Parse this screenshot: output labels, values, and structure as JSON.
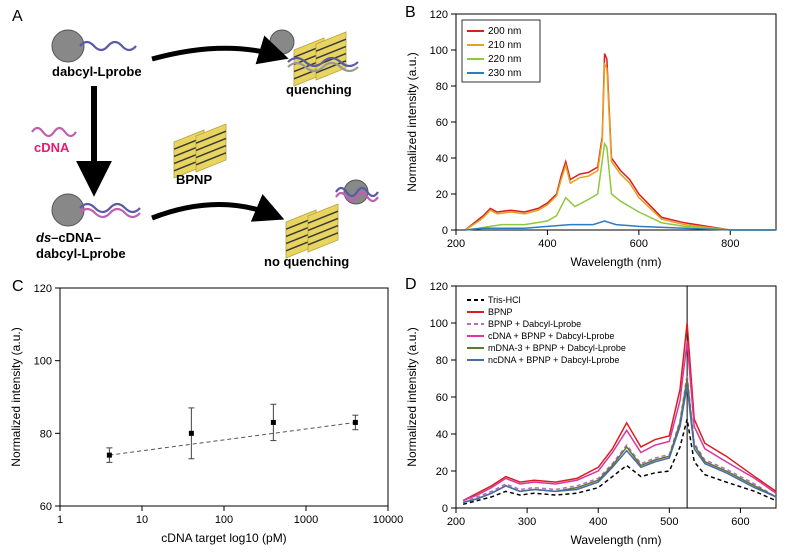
{
  "panel_labels": {
    "A": "A",
    "B": "B",
    "C": "C",
    "D": "D"
  },
  "diagram": {
    "top_left": {
      "label": "dabcyl-Lprobe",
      "color": "#000000"
    },
    "top_right": {
      "label": "quenching",
      "color": "#000000"
    },
    "bottom_left": {
      "label_italic_prefix": "ds",
      "label_rest": "–cDNA–\ndabcyl-Lprobe",
      "color": "#000000"
    },
    "bottom_right": {
      "label": "no quenching",
      "color": "#000000"
    },
    "cdna": {
      "label": "cDNA",
      "color": "#e61a6e"
    },
    "bpnp": {
      "label": "BPNP",
      "color": "#000000"
    },
    "sphere_color": "#888888",
    "dna_colors": {
      "probe": "#5a5aa8",
      "cdna": "#c060b0",
      "bpnp_fill": "#e8d560",
      "bpnp_stroke": "#3a3a3a"
    },
    "font_size": 13,
    "font_weight": "bold"
  },
  "chartB": {
    "type": "line",
    "title": "",
    "xlabel": "Wavelength (nm)",
    "ylabel": "Normalized intensity (a.u.)",
    "xlim": [
      200,
      900
    ],
    "ylim": [
      0,
      120
    ],
    "xticks": [
      200,
      400,
      600,
      800
    ],
    "yticks": [
      0,
      20,
      40,
      60,
      80,
      100,
      120
    ],
    "label_fontsize": 12,
    "tick_fontsize": 11,
    "legend_fontsize": 10,
    "line_width": 1.5,
    "background_color": "#ffffff",
    "axis_color": "#000000",
    "legend_box": true,
    "series": [
      {
        "name": "200 nm",
        "color": "#d81e1e",
        "x": [
          220,
          250,
          260,
          275,
          290,
          320,
          350,
          380,
          400,
          420,
          430,
          440,
          450,
          470,
          490,
          510,
          520,
          525,
          530,
          540,
          560,
          580,
          600,
          650,
          700,
          800,
          900
        ],
        "y": [
          0,
          6,
          8,
          12,
          10,
          11,
          10,
          12,
          15,
          20,
          30,
          38,
          28,
          31,
          32,
          35,
          52,
          98,
          95,
          40,
          33,
          28,
          20,
          7,
          4,
          0,
          0
        ]
      },
      {
        "name": "210 nm",
        "color": "#e8a020",
        "x": [
          220,
          250,
          260,
          275,
          290,
          320,
          350,
          380,
          400,
          420,
          430,
          440,
          450,
          470,
          490,
          510,
          520,
          525,
          530,
          540,
          560,
          580,
          600,
          650,
          700,
          800,
          900
        ],
        "y": [
          0,
          5,
          7,
          11,
          9,
          10,
          9,
          11,
          14,
          19,
          28,
          36,
          26,
          29,
          30,
          33,
          50,
          92,
          90,
          38,
          31,
          26,
          18,
          6,
          3,
          0,
          0
        ]
      },
      {
        "name": "220 nm",
        "color": "#8fc83c",
        "x": [
          220,
          250,
          275,
          300,
          350,
          400,
          420,
          440,
          460,
          490,
          510,
          525,
          530,
          540,
          560,
          600,
          650,
          700,
          800,
          900
        ],
        "y": [
          0,
          1,
          2,
          3,
          3,
          5,
          8,
          18,
          13,
          17,
          20,
          48,
          46,
          20,
          16,
          10,
          4,
          2,
          0,
          0
        ]
      },
      {
        "name": "230 nm",
        "color": "#2e7cc0",
        "x": [
          220,
          260,
          300,
          350,
          400,
          450,
          500,
          525,
          550,
          600,
          700,
          800,
          900
        ],
        "y": [
          0,
          1,
          1,
          1,
          2,
          3,
          3,
          5,
          3,
          2,
          1,
          0,
          0
        ]
      }
    ]
  },
  "chartC": {
    "type": "scatter",
    "xlabel": "cDNA target log10 (pM)",
    "ylabel": "Normalized intensity (a.u.)",
    "xlim": [
      1,
      10000
    ],
    "ylim": [
      60,
      120
    ],
    "xticks": [
      1,
      10,
      100,
      1000,
      10000
    ],
    "yticks": [
      60,
      80,
      100,
      120
    ],
    "xscale": "log",
    "label_fontsize": 12,
    "tick_fontsize": 11,
    "marker_color": "#000000",
    "marker_size": 5,
    "marker_shape": "square",
    "errorbar_color": "#444444",
    "errorbar_width": 1,
    "trendline_color": "#555555",
    "trendline_dash": "4,3",
    "background_color": "#ffffff",
    "axis_color": "#000000",
    "points": [
      {
        "x": 4,
        "y": 74,
        "err": 2
      },
      {
        "x": 40,
        "y": 80,
        "err": 7
      },
      {
        "x": 400,
        "y": 83,
        "err": 5
      },
      {
        "x": 4000,
        "y": 83,
        "err": 2
      }
    ]
  },
  "chartD": {
    "type": "line",
    "xlabel": "Wavelength (nm)",
    "ylabel": "Normalized intensity (a.u.)",
    "xlim": [
      200,
      650
    ],
    "ylim": [
      0,
      120
    ],
    "xticks": [
      200,
      300,
      400,
      500,
      600
    ],
    "yticks": [
      0,
      20,
      40,
      60,
      80,
      100,
      120
    ],
    "label_fontsize": 12,
    "tick_fontsize": 11,
    "legend_fontsize": 9,
    "line_width": 1.5,
    "background_color": "#ffffff",
    "axis_color": "#000000",
    "vline_x": 525,
    "vline_color": "#000000",
    "series": [
      {
        "name": "Tris-HCl",
        "color": "#000000",
        "dash": "4,3",
        "x": [
          210,
          230,
          250,
          270,
          290,
          310,
          340,
          370,
          400,
          420,
          440,
          460,
          480,
          500,
          515,
          525,
          535,
          550,
          580,
          620,
          650
        ],
        "y": [
          2,
          4,
          6,
          9,
          7,
          8,
          7,
          8,
          11,
          17,
          23,
          17,
          19,
          20,
          33,
          48,
          25,
          18,
          14,
          9,
          4
        ]
      },
      {
        "name": "BPNP",
        "color": "#d81e1e",
        "dash": null,
        "x": [
          210,
          230,
          250,
          270,
          290,
          310,
          340,
          370,
          400,
          420,
          440,
          460,
          480,
          500,
          515,
          525,
          535,
          550,
          580,
          620,
          650
        ],
        "y": [
          4,
          8,
          12,
          17,
          14,
          15,
          14,
          16,
          22,
          32,
          46,
          33,
          37,
          39,
          64,
          100,
          48,
          35,
          28,
          17,
          9
        ]
      },
      {
        "name": "BPNP + Dabcyl-Lprobe",
        "color": "#b86eb8",
        "dash": "4,3",
        "x": [
          210,
          230,
          250,
          270,
          290,
          310,
          340,
          370,
          400,
          420,
          440,
          460,
          480,
          500,
          515,
          525,
          535,
          550,
          580,
          620,
          650
        ],
        "y": [
          3,
          6,
          9,
          13,
          10,
          11,
          10,
          12,
          16,
          24,
          34,
          24,
          27,
          29,
          47,
          72,
          35,
          26,
          21,
          13,
          6
        ]
      },
      {
        "name": "cDNA + BPNP + Dabcyl-Lprobe",
        "color": "#d838a0",
        "dash": null,
        "x": [
          210,
          230,
          250,
          270,
          290,
          310,
          340,
          370,
          400,
          420,
          440,
          460,
          480,
          500,
          515,
          525,
          535,
          550,
          580,
          620,
          650
        ],
        "y": [
          4,
          7,
          11,
          16,
          13,
          14,
          13,
          15,
          20,
          30,
          42,
          30,
          34,
          36,
          58,
          90,
          44,
          32,
          25,
          16,
          8
        ]
      },
      {
        "name": "mDNA-3 + BPNP + Dabcyl-Lprobe",
        "color": "#5a7a30",
        "dash": null,
        "x": [
          210,
          230,
          250,
          270,
          290,
          310,
          340,
          370,
          400,
          420,
          440,
          460,
          480,
          500,
          515,
          525,
          535,
          550,
          580,
          620,
          650
        ],
        "y": [
          3,
          5,
          8,
          12,
          9,
          10,
          9,
          11,
          15,
          23,
          33,
          23,
          26,
          28,
          46,
          70,
          34,
          25,
          20,
          12,
          6
        ]
      },
      {
        "name": "ncDNA + BPNP + Dabcyl-Lprobe",
        "color": "#4a6aa8",
        "dash": null,
        "x": [
          210,
          230,
          250,
          270,
          290,
          310,
          340,
          370,
          400,
          420,
          440,
          460,
          480,
          500,
          515,
          525,
          535,
          550,
          580,
          620,
          650
        ],
        "y": [
          3,
          5,
          8,
          12,
          9,
          10,
          9,
          10,
          14,
          22,
          31,
          22,
          25,
          27,
          44,
          66,
          32,
          24,
          19,
          11,
          6
        ]
      }
    ]
  }
}
